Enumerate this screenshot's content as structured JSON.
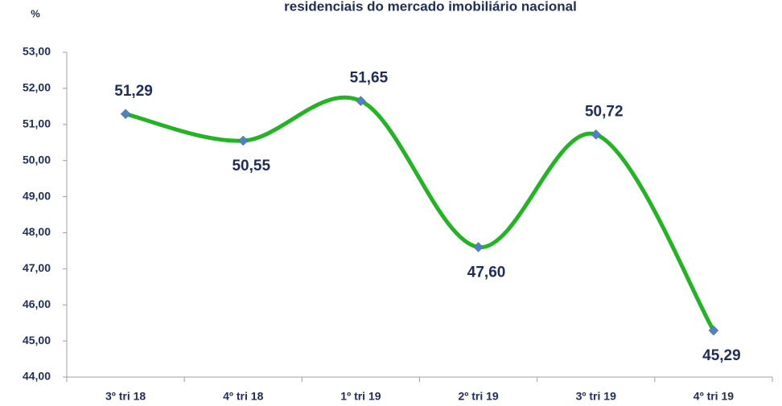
{
  "chart_data": {
    "type": "line",
    "title": "residenciais do mercado imobiliário nacional",
    "y_label": "%",
    "categories": [
      "3º tri 18",
      "4º tri 18",
      "1º tri 19",
      "2º tri 19",
      "3º tri 19",
      "4º tri 19"
    ],
    "series": [
      {
        "name": "%",
        "color": "#22b422",
        "marker_color": "#4f81bd",
        "values": [
          51.29,
          50.55,
          51.65,
          47.6,
          50.72,
          45.29
        ],
        "value_labels": [
          "51,29",
          "50,55",
          "51,65",
          "47,60",
          "50,72",
          "45,29"
        ]
      }
    ],
    "ylim": [
      44,
      53
    ],
    "yticks": [
      {
        "value": 44,
        "label": "44,00"
      },
      {
        "value": 45,
        "label": "45,00"
      },
      {
        "value": 46,
        "label": "46,00"
      },
      {
        "value": 47,
        "label": "47,00"
      },
      {
        "value": 48,
        "label": "48,00"
      },
      {
        "value": 49,
        "label": "49,00"
      },
      {
        "value": 50,
        "label": "50,00"
      },
      {
        "value": 51,
        "label": "51,00"
      },
      {
        "value": 52,
        "label": "52,00"
      },
      {
        "value": 53,
        "label": "53,00"
      }
    ],
    "grid": false,
    "smooth": true
  }
}
